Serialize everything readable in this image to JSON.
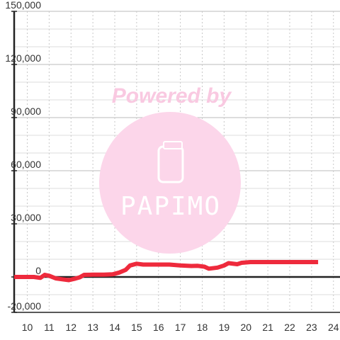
{
  "chart_data": {
    "type": "line",
    "x_ticks": [
      10,
      11,
      12,
      13,
      14,
      15,
      16,
      17,
      18,
      19,
      20,
      21,
      22,
      23,
      24
    ],
    "y_ticks": [
      -20000,
      0,
      30000,
      60000,
      90000,
      120000,
      150000
    ],
    "y_tick_labels": [
      "-20,000",
      "0",
      "30,000",
      "60,000",
      "90,000",
      "120,000",
      "150,000"
    ],
    "xlim": [
      9.4,
      24.3
    ],
    "ylim": [
      -20000,
      150000
    ],
    "grid": true,
    "series": [
      {
        "color": "#ee2a3c",
        "points": [
          [
            9.4,
            0
          ],
          [
            10.3,
            0
          ],
          [
            10.6,
            -500
          ],
          [
            10.8,
            1200
          ],
          [
            11.0,
            700
          ],
          [
            11.3,
            -800
          ],
          [
            11.6,
            -1300
          ],
          [
            11.9,
            -1800
          ],
          [
            12.2,
            -900
          ],
          [
            12.4,
            -200
          ],
          [
            12.6,
            1200
          ],
          [
            13.0,
            1300
          ],
          [
            13.5,
            1300
          ],
          [
            13.9,
            1500
          ],
          [
            14.2,
            2500
          ],
          [
            14.5,
            4000
          ],
          [
            14.7,
            6500
          ],
          [
            15.0,
            7500
          ],
          [
            15.3,
            7000
          ],
          [
            16.0,
            7000
          ],
          [
            16.5,
            7000
          ],
          [
            17.0,
            6500
          ],
          [
            17.5,
            6200
          ],
          [
            17.8,
            6300
          ],
          [
            18.1,
            5800
          ],
          [
            18.3,
            4700
          ],
          [
            18.7,
            5300
          ],
          [
            19.0,
            6500
          ],
          [
            19.2,
            7800
          ],
          [
            19.6,
            7200
          ],
          [
            19.8,
            8000
          ],
          [
            20.2,
            8400
          ],
          [
            21.0,
            8400
          ],
          [
            22.0,
            8400
          ],
          [
            23.3,
            8400
          ]
        ]
      }
    ]
  },
  "watermark": {
    "powered_by": "Powered by",
    "brand": "PAPIMO",
    "circle_color": "#fcd6ea",
    "text_color": "#f9c9e1"
  }
}
